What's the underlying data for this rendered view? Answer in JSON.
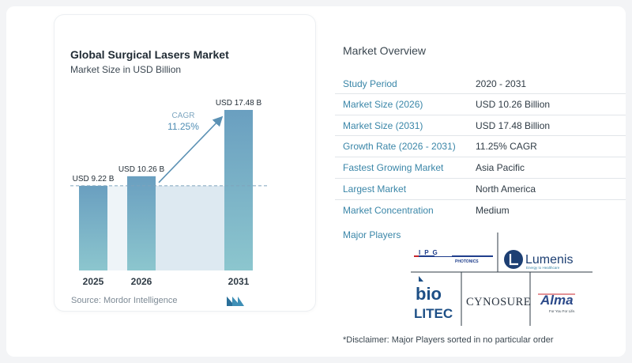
{
  "chart_data": {
    "type": "bar",
    "title": "Global Surgical Lasers Market",
    "subtitle": "Market Size in USD Billion",
    "categories": [
      "2025",
      "2026",
      "2031"
    ],
    "values": [
      9.22,
      10.26,
      17.48
    ],
    "value_labels": [
      "USD 9.22 B",
      "USD 10.26 B",
      "USD 17.48 B"
    ],
    "cagr_label": "CAGR",
    "cagr_value": "11.25%",
    "ylim": [
      0,
      17.48
    ],
    "colors": {
      "bar_top": "#6a9fc0",
      "bar_bottom": "#8cc6ce",
      "band": "#dde9f1",
      "arrow": "#5b91b4",
      "baseline_dash": "#7fa3bc"
    }
  },
  "source": "Source:  Mordor Intelligence",
  "overview": {
    "title": "Market Overview",
    "rows": [
      {
        "label": "Study Period",
        "value": "2020 - 2031"
      },
      {
        "label": "Market Size (2026)",
        "value": "USD 10.26 Billion"
      },
      {
        "label": "Market Size (2031)",
        "value": "USD 17.48 Billion"
      },
      {
        "label": "Growth Rate (2026 - 2031)",
        "value": "11.25% CAGR"
      },
      {
        "label": "Fastest Growing Market",
        "value": "Asia Pacific"
      },
      {
        "label": "Largest Market",
        "value": "North America"
      },
      {
        "label": "Market Concentration",
        "value": "Medium"
      }
    ],
    "players_title": "Major Players",
    "players": {
      "ipg": "IPG",
      "ipg_sub": "PHOTONICS",
      "lumenis": "Lumenis",
      "lumenis_tag": "Energy to Healthcare",
      "biolitec_top": "bio",
      "biolitec_bottom": "LITEC",
      "cynosure": "CYNOSURE",
      "alma": "Alma",
      "alma_tag": "For You For Life."
    },
    "disclaimer": "*Disclaimer: Major Players sorted in no particular order"
  }
}
